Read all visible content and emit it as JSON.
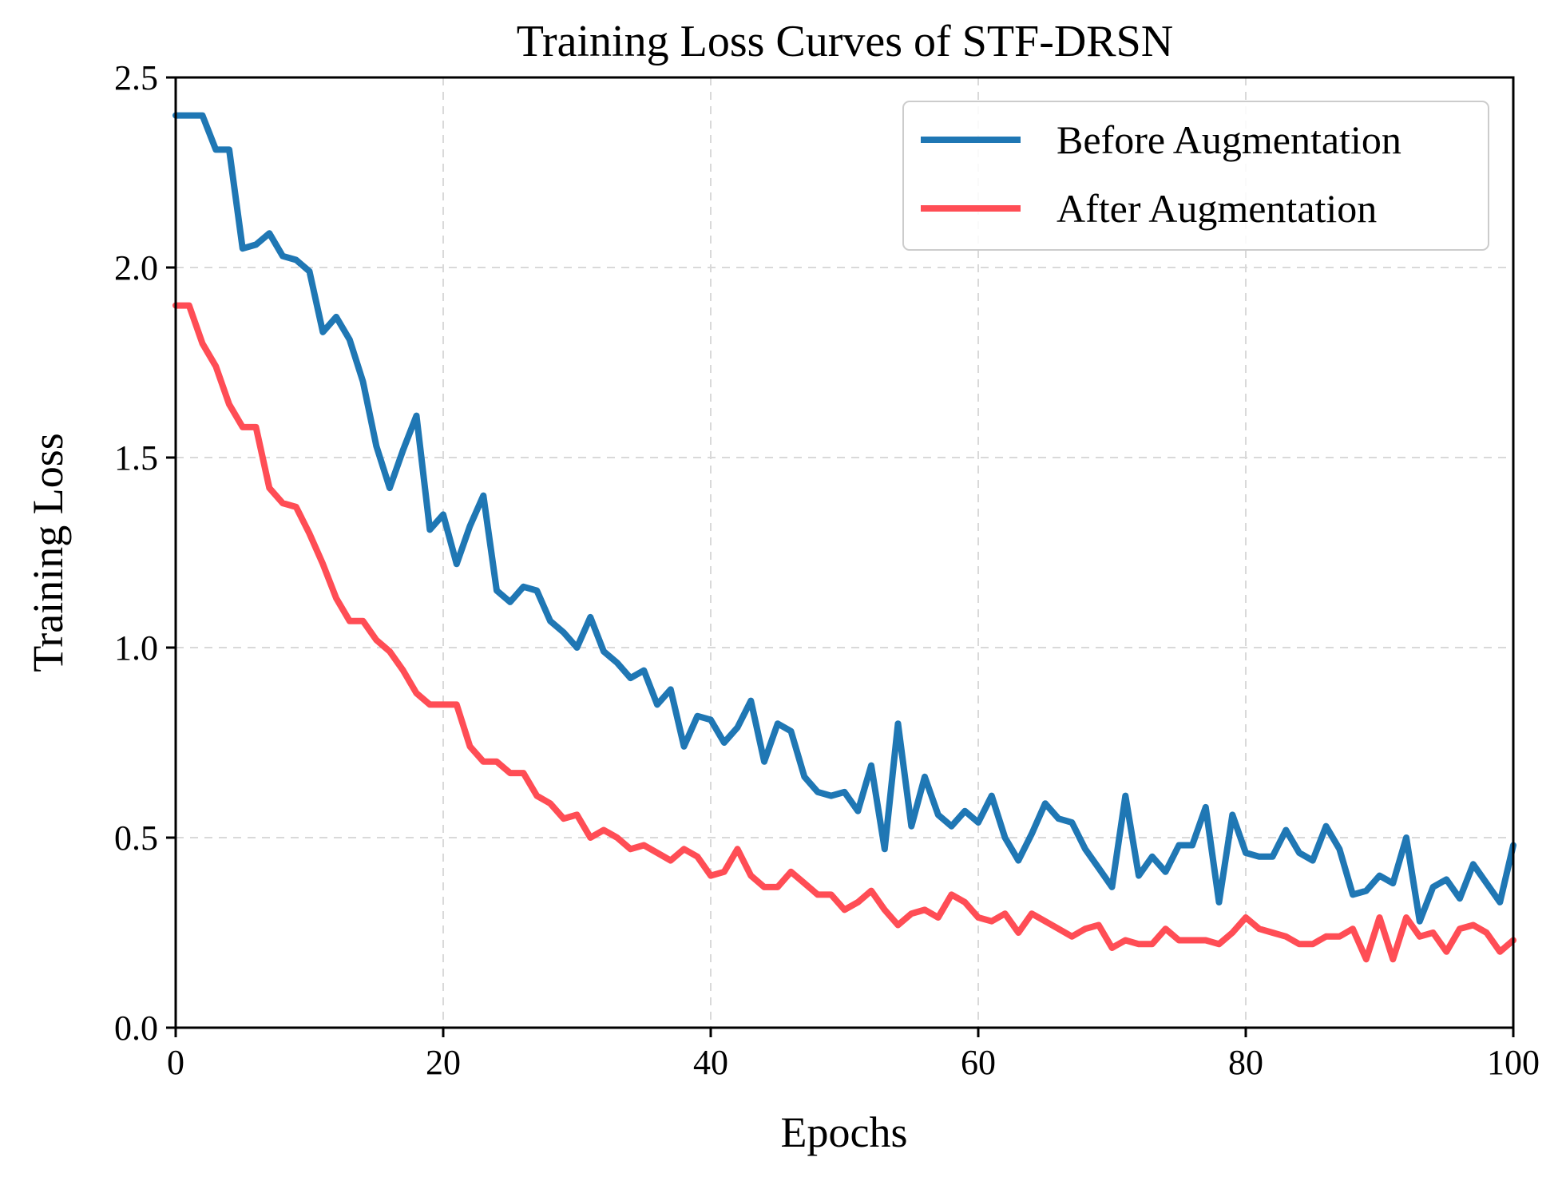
{
  "chart_data": {
    "type": "line",
    "title": "Training Loss Curves of STF-DRSN",
    "xlabel": "Epochs",
    "ylabel": "Training Loss",
    "xlim": [
      0,
      100
    ],
    "ylim": [
      0,
      2.5
    ],
    "xticks": [
      "0",
      "20",
      "40",
      "60",
      "80",
      "100"
    ],
    "yticks": [
      "0.0",
      "0.5",
      "1.0",
      "1.5",
      "2.0",
      "2.5"
    ],
    "grid": true,
    "legend_position": "top-right",
    "x": [
      0,
      1,
      2,
      3,
      4,
      5,
      6,
      7,
      8,
      9,
      10,
      11,
      12,
      13,
      14,
      15,
      16,
      17,
      18,
      19,
      20,
      21,
      22,
      23,
      24,
      25,
      26,
      27,
      28,
      29,
      30,
      31,
      32,
      33,
      34,
      35,
      36,
      37,
      38,
      39,
      40,
      41,
      42,
      43,
      44,
      45,
      46,
      47,
      48,
      49,
      50,
      51,
      52,
      53,
      54,
      55,
      56,
      57,
      58,
      59,
      60,
      61,
      62,
      63,
      64,
      65,
      66,
      67,
      68,
      69,
      70,
      71,
      72,
      73,
      74,
      75,
      76,
      77,
      78,
      79,
      80,
      81,
      82,
      83,
      84,
      85,
      86,
      87,
      88,
      89,
      90,
      91,
      92,
      93,
      94,
      95,
      96,
      97,
      98,
      99,
      100
    ],
    "series": [
      {
        "name": "Before Augmentation",
        "color": "#1f77b4",
        "values": [
          2.4,
          2.4,
          2.4,
          2.31,
          2.31,
          2.05,
          2.06,
          2.09,
          2.03,
          2.02,
          1.99,
          1.83,
          1.87,
          1.81,
          1.7,
          1.53,
          1.42,
          1.52,
          1.61,
          1.31,
          1.35,
          1.22,
          1.32,
          1.4,
          1.15,
          1.12,
          1.16,
          1.15,
          1.07,
          1.04,
          1.0,
          1.08,
          0.99,
          0.96,
          0.92,
          0.94,
          0.85,
          0.89,
          0.74,
          0.82,
          0.81,
          0.75,
          0.79,
          0.86,
          0.7,
          0.8,
          0.78,
          0.66,
          0.62,
          0.61,
          0.62,
          0.57,
          0.69,
          0.47,
          0.8,
          0.53,
          0.66,
          0.56,
          0.53,
          0.57,
          0.54,
          0.61,
          0.5,
          0.44,
          0.51,
          0.59,
          0.55,
          0.54,
          0.47,
          0.42,
          0.37,
          0.61,
          0.4,
          0.45,
          0.41,
          0.48,
          0.48,
          0.58,
          0.33,
          0.56,
          0.46,
          0.45,
          0.45,
          0.52,
          0.46,
          0.44,
          0.53,
          0.47,
          0.35,
          0.36,
          0.4,
          0.38,
          0.5,
          0.28,
          0.37,
          0.39,
          0.34,
          0.43,
          0.38,
          0.33,
          0.48
        ]
      },
      {
        "name": "After Augmentation",
        "color": "#ff4d55",
        "values": [
          1.9,
          1.9,
          1.8,
          1.74,
          1.64,
          1.58,
          1.58,
          1.42,
          1.38,
          1.37,
          1.3,
          1.22,
          1.13,
          1.07,
          1.07,
          1.02,
          0.99,
          0.94,
          0.88,
          0.85,
          0.85,
          0.85,
          0.74,
          0.7,
          0.7,
          0.67,
          0.67,
          0.61,
          0.59,
          0.55,
          0.56,
          0.5,
          0.52,
          0.5,
          0.47,
          0.48,
          0.46,
          0.44,
          0.47,
          0.45,
          0.4,
          0.41,
          0.47,
          0.4,
          0.37,
          0.37,
          0.41,
          0.38,
          0.35,
          0.35,
          0.31,
          0.33,
          0.36,
          0.31,
          0.27,
          0.3,
          0.31,
          0.29,
          0.35,
          0.33,
          0.29,
          0.28,
          0.3,
          0.25,
          0.3,
          0.28,
          0.26,
          0.24,
          0.26,
          0.27,
          0.21,
          0.23,
          0.22,
          0.22,
          0.26,
          0.23,
          0.23,
          0.23,
          0.22,
          0.25,
          0.29,
          0.26,
          0.25,
          0.24,
          0.22,
          0.22,
          0.24,
          0.24,
          0.26,
          0.18,
          0.29,
          0.18,
          0.29,
          0.24,
          0.25,
          0.2,
          0.26,
          0.27,
          0.25,
          0.2,
          0.23
        ]
      }
    ]
  }
}
